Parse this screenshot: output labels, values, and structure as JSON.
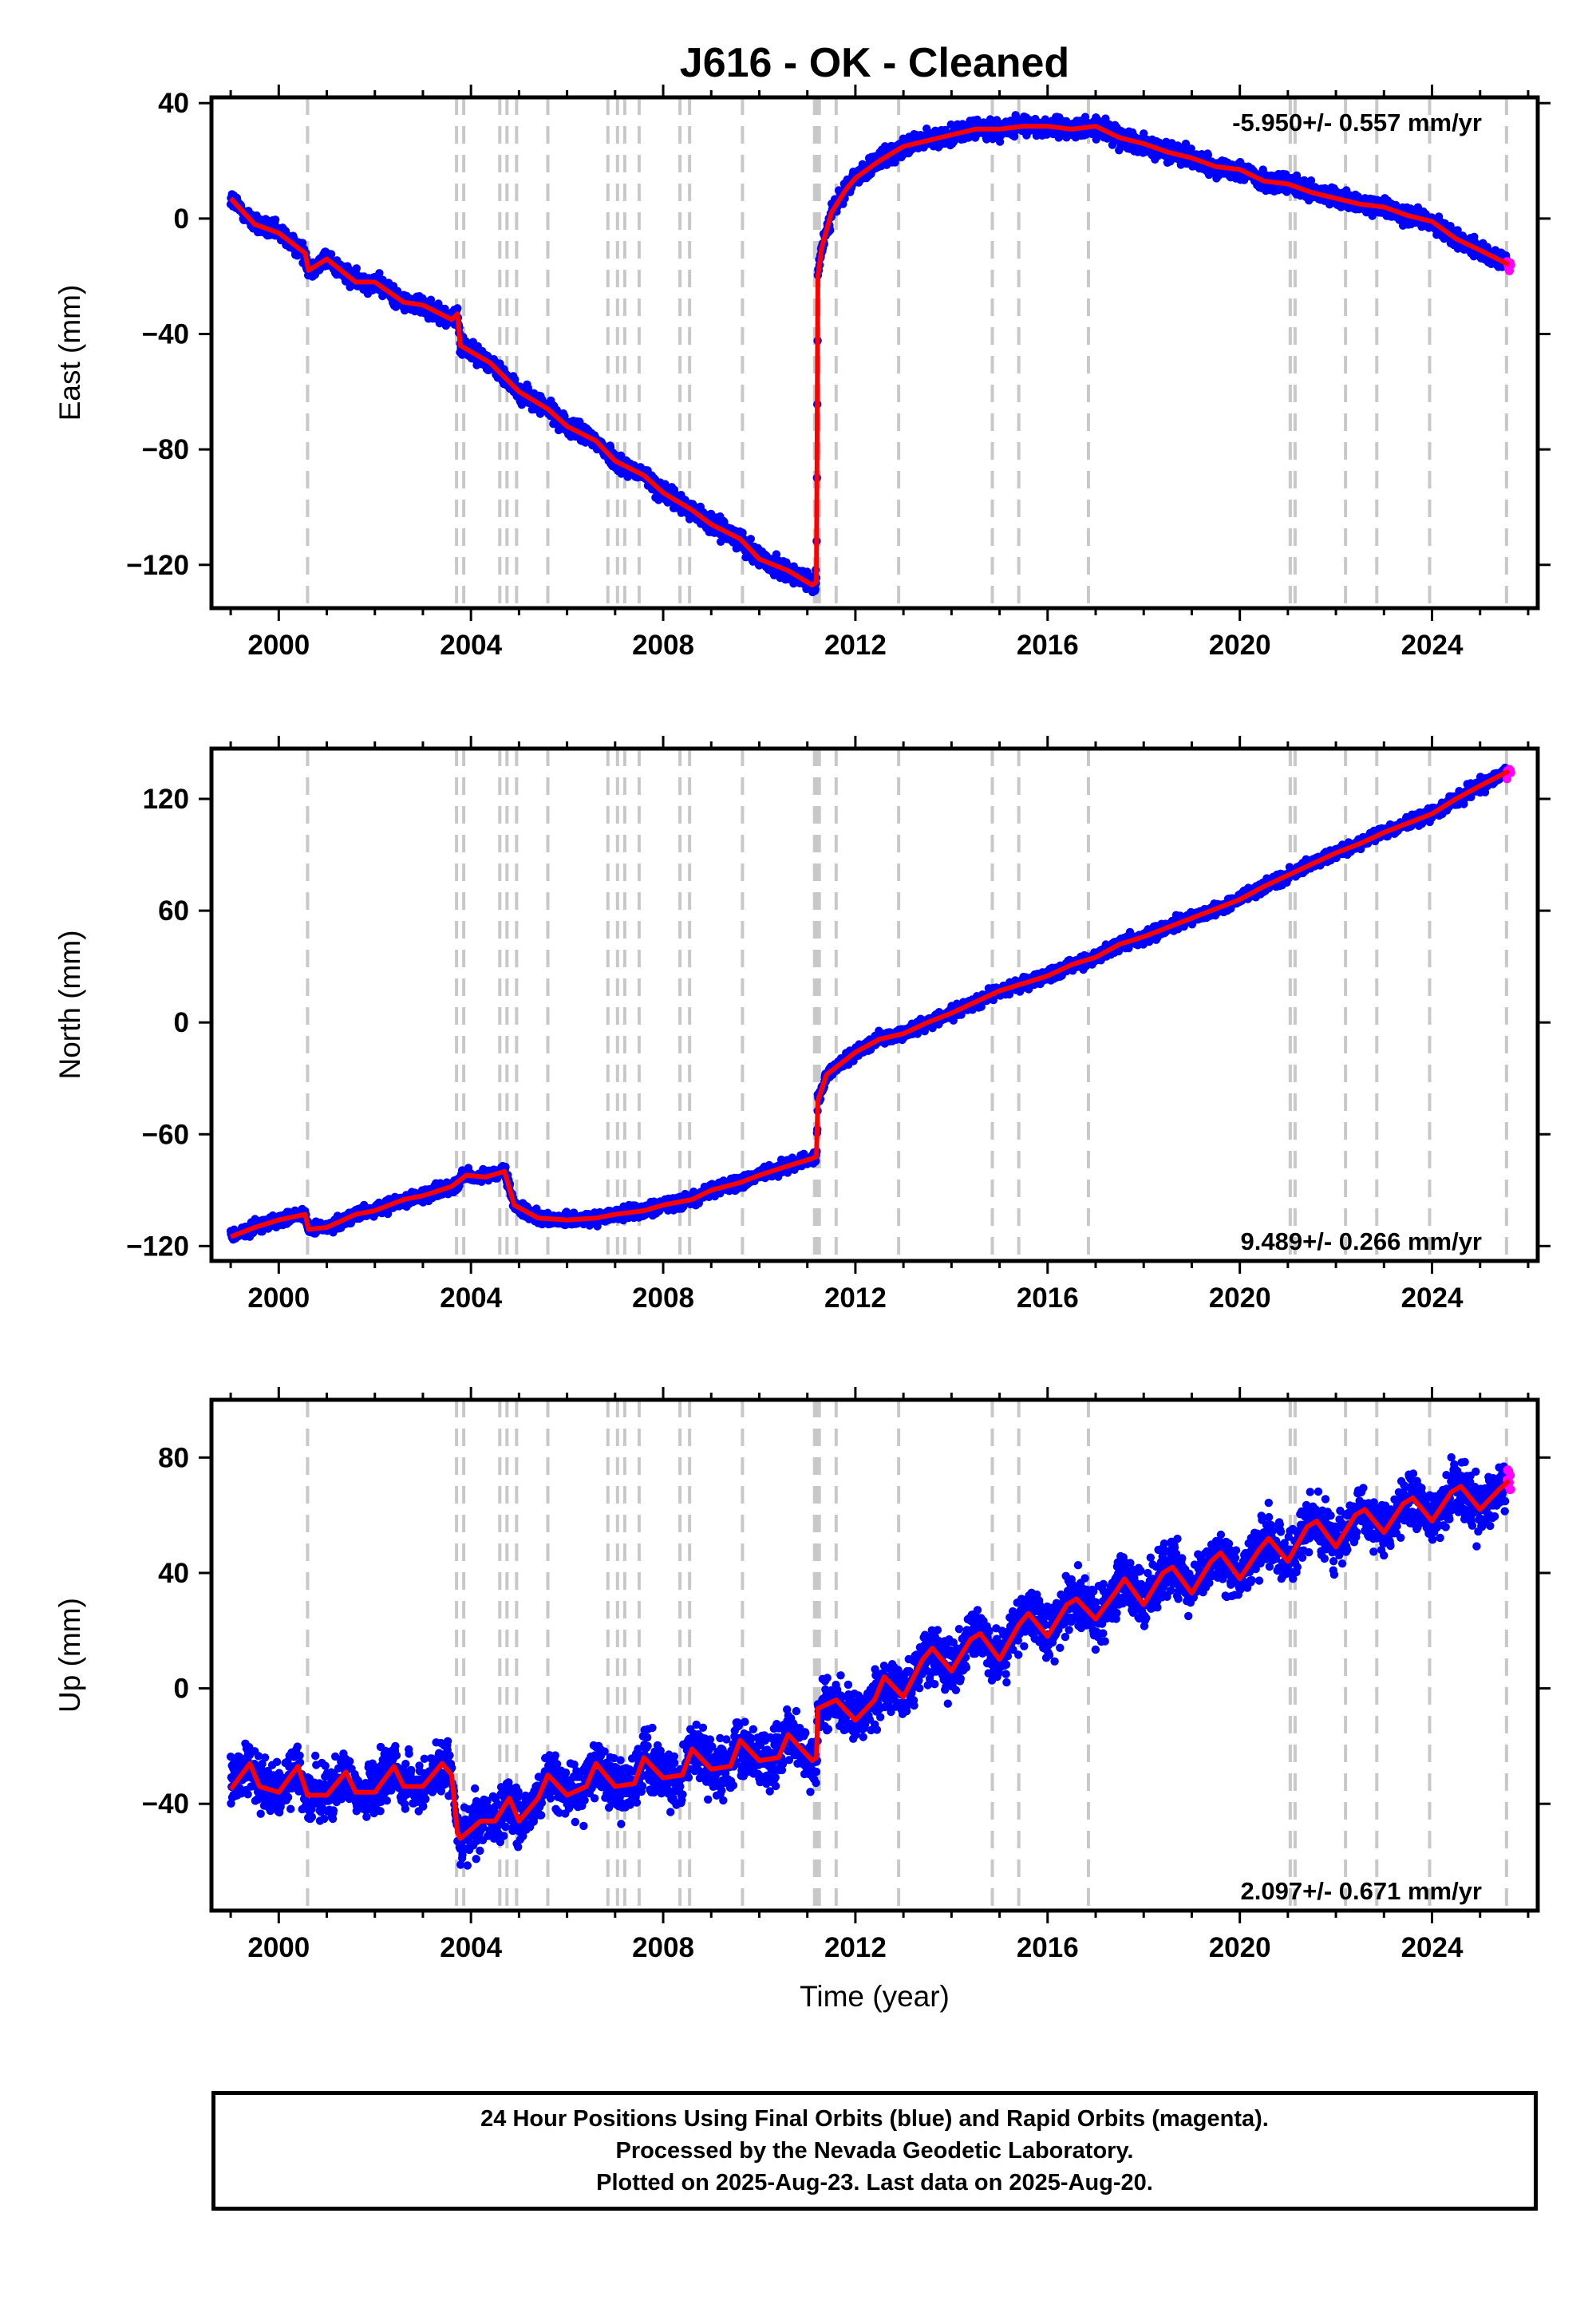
{
  "figure_title": "J616  - OK - Cleaned",
  "footer": {
    "line1": "24 Hour Positions Using Final Orbits (blue) and Rapid Orbits (magenta).",
    "line2": "Processed by the Nevada Geodetic Laboratory.",
    "line3": "Plotted on 2025-Aug-23. Last data on 2025-Aug-20."
  },
  "colors": {
    "final_orbits": "#0000ff",
    "rapid_orbits": "#ff00ff",
    "model_fit": "#ff0000",
    "event_lines": "#c8c8c8"
  },
  "event_years": [
    2000.6,
    2003.7,
    2003.85,
    2004.6,
    2004.75,
    2004.95,
    2005.6,
    2006.85,
    2007.05,
    2007.2,
    2007.5,
    2008.35,
    2008.55,
    2009.65,
    2011.15,
    2011.2,
    2011.25,
    2011.6,
    2012.9,
    2014.85,
    2015.4,
    2016.85,
    2021.05,
    2021.15,
    2022.2,
    2022.85,
    2023.95,
    2025.55
  ],
  "chart_data": [
    {
      "type": "scatter",
      "ylabel": "East (mm)",
      "xlabel": "",
      "xlim": [
        1998.6,
        2026.2
      ],
      "ylim": [
        -135,
        42
      ],
      "x_ticks": [
        2000,
        2004,
        2008,
        2012,
        2016,
        2020,
        2024
      ],
      "y_ticks": [
        -120,
        -80,
        -40,
        0,
        40
      ],
      "rate_label": "-5.950+/- 0.557 mm/yr",
      "model": {
        "x": [
          1999.0,
          1999.5,
          2000.0,
          2000.55,
          2000.62,
          2001.0,
          2001.6,
          2002.0,
          2002.6,
          2003.0,
          2003.6,
          2003.72,
          2003.78,
          2004.4,
          2005.0,
          2005.6,
          2006.0,
          2006.6,
          2007.0,
          2007.6,
          2008.0,
          2008.6,
          2009.0,
          2009.6,
          2010.0,
          2010.6,
          2011.1,
          2011.19,
          2011.22,
          2011.3,
          2011.5,
          2011.8,
          2012.0,
          2012.5,
          2013.0,
          2013.5,
          2014.0,
          2014.5,
          2015.0,
          2015.5,
          2016.0,
          2016.5,
          2017.0,
          2017.5,
          2018.0,
          2018.5,
          2019.0,
          2019.5,
          2020.0,
          2020.5,
          2021.0,
          2021.5,
          2022.0,
          2022.5,
          2023.0,
          2023.5,
          2024.0,
          2024.5,
          2025.0,
          2025.6
        ],
        "y": [
          7,
          -2,
          -5,
          -12,
          -18,
          -14,
          -22,
          -22,
          -29,
          -30,
          -35,
          -33,
          -44,
          -50,
          -60,
          -66,
          -72,
          -77,
          -84,
          -89,
          -95,
          -101,
          -106,
          -111,
          -118,
          -122,
          -127,
          -126,
          -20,
          -10,
          2,
          10,
          14,
          20,
          25,
          27,
          29,
          31,
          31,
          32,
          32,
          31,
          32,
          28,
          26,
          23,
          21,
          18,
          17,
          13,
          12,
          9,
          7,
          5,
          4,
          1,
          -1,
          -7,
          -11,
          -16
        ]
      }
    },
    {
      "type": "scatter",
      "ylabel": "North (mm)",
      "xlabel": "",
      "xlim": [
        1998.6,
        2026.2
      ],
      "ylim": [
        -128,
        147
      ],
      "x_ticks": [
        2000,
        2004,
        2008,
        2012,
        2016,
        2020,
        2024
      ],
      "y_ticks": [
        -120,
        -60,
        0,
        60,
        120
      ],
      "rate_label": "9.489+/- 0.266 mm/yr",
      "model": {
        "x": [
          1999.0,
          1999.5,
          2000.0,
          2000.55,
          2000.62,
          2001.0,
          2001.6,
          2002.0,
          2002.6,
          2003.0,
          2003.6,
          2003.9,
          2004.3,
          2004.7,
          2004.9,
          2005.4,
          2006.0,
          2006.6,
          2007.0,
          2007.6,
          2008.0,
          2008.6,
          2009.0,
          2009.6,
          2010.0,
          2010.6,
          2011.1,
          2011.19,
          2011.22,
          2011.4,
          2011.8,
          2012.0,
          2012.5,
          2013.0,
          2013.5,
          2014.0,
          2014.5,
          2015.0,
          2015.5,
          2016.0,
          2016.5,
          2017.0,
          2017.5,
          2018.0,
          2018.5,
          2019.0,
          2019.5,
          2020.0,
          2020.5,
          2021.0,
          2021.5,
          2022.0,
          2022.5,
          2023.0,
          2023.5,
          2024.0,
          2024.5,
          2025.0,
          2025.6
        ],
        "y": [
          -115,
          -110,
          -106,
          -103,
          -111,
          -110,
          -103,
          -101,
          -95,
          -93,
          -88,
          -82,
          -83,
          -80,
          -98,
          -105,
          -106,
          -105,
          -103,
          -101,
          -98,
          -95,
          -90,
          -86,
          -82,
          -77,
          -73,
          -72,
          -42,
          -28,
          -20,
          -16,
          -9,
          -6,
          0,
          5,
          11,
          17,
          21,
          25,
          31,
          35,
          42,
          46,
          51,
          56,
          61,
          66,
          73,
          79,
          85,
          91,
          96,
          102,
          107,
          112,
          120,
          127,
          135
        ]
      }
    },
    {
      "type": "scatter",
      "ylabel": "Up (mm)",
      "xlabel": "Time (year)",
      "xlim": [
        1998.6,
        2026.2
      ],
      "ylim": [
        -77,
        100
      ],
      "x_ticks": [
        2000,
        2004,
        2008,
        2012,
        2016,
        2020,
        2024
      ],
      "y_ticks": [
        -40,
        0,
        40,
        80
      ],
      "rate_label": "2.097+/- 0.671 mm/yr",
      "model": {
        "x": [
          1999.0,
          1999.4,
          1999.6,
          2000.0,
          2000.4,
          2000.6,
          2001.0,
          2001.4,
          2001.6,
          2002.0,
          2002.4,
          2002.6,
          2003.0,
          2003.4,
          2003.6,
          2003.72,
          2003.78,
          2004.2,
          2004.5,
          2004.8,
          2005.0,
          2005.4,
          2005.6,
          2006.0,
          2006.4,
          2006.6,
          2007.0,
          2007.4,
          2007.6,
          2008.0,
          2008.4,
          2008.6,
          2009.0,
          2009.4,
          2009.6,
          2010.0,
          2010.4,
          2010.6,
          2011.1,
          2011.19,
          2011.22,
          2011.6,
          2012.0,
          2012.4,
          2012.6,
          2013.0,
          2013.4,
          2013.6,
          2014.0,
          2014.4,
          2014.6,
          2015.0,
          2015.4,
          2015.6,
          2016.0,
          2016.4,
          2016.6,
          2017.0,
          2017.4,
          2017.6,
          2018.0,
          2018.4,
          2018.6,
          2019.0,
          2019.4,
          2019.6,
          2020.0,
          2020.4,
          2020.6,
          2021.0,
          2021.4,
          2021.6,
          2022.0,
          2022.4,
          2022.6,
          2023.0,
          2023.4,
          2023.6,
          2024.0,
          2024.4,
          2024.6,
          2025.0,
          2025.4,
          2025.6
        ],
        "y": [
          -35,
          -26,
          -34,
          -36,
          -27,
          -37,
          -37,
          -29,
          -36,
          -36,
          -27,
          -34,
          -34,
          -26,
          -30,
          -50,
          -52,
          -46,
          -46,
          -38,
          -46,
          -38,
          -30,
          -37,
          -34,
          -26,
          -34,
          -33,
          -24,
          -31,
          -30,
          -21,
          -28,
          -27,
          -18,
          -25,
          -24,
          -16,
          -25,
          -24,
          -7,
          -4,
          -11,
          -4,
          4,
          -3,
          10,
          14,
          6,
          17,
          19,
          10,
          22,
          26,
          18,
          29,
          31,
          24,
          33,
          38,
          29,
          40,
          42,
          33,
          44,
          47,
          38,
          48,
          52,
          44,
          56,
          58,
          49,
          60,
          62,
          54,
          64,
          66,
          58,
          68,
          70,
          62,
          69,
          72
        ]
      }
    }
  ]
}
